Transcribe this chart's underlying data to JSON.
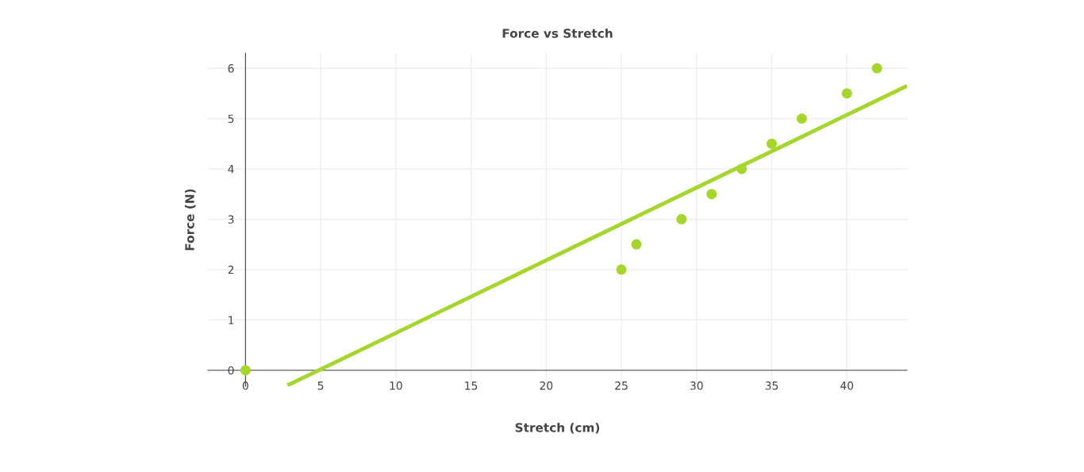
{
  "chart_data": {
    "type": "scatter",
    "title": "Force vs Stretch",
    "xlabel": "Stretch (cm)",
    "ylabel": "Force (N)",
    "x": [
      0,
      25,
      26,
      29,
      31,
      33,
      35,
      37,
      40,
      42
    ],
    "series": [
      {
        "color": "#a5d62b",
        "marker": "circle",
        "values": [
          0,
          2,
          2.5,
          3,
          3.5,
          4,
          4.5,
          5,
          5.5,
          6
        ]
      },
      {
        "type": "line",
        "color": "#a5d62b",
        "marker": "none",
        "x": [
          2.8,
          44
        ],
        "values": [
          -0.3,
          5.65
        ]
      }
    ],
    "xlim": [
      -2.5,
      44
    ],
    "ylim": [
      -0.32,
      6.3
    ],
    "xticks": [
      0,
      5,
      10,
      15,
      20,
      25,
      30,
      35,
      40
    ],
    "yticks": [
      0,
      1,
      2,
      3,
      4,
      5,
      6
    ],
    "grid": true,
    "legend": false
  }
}
